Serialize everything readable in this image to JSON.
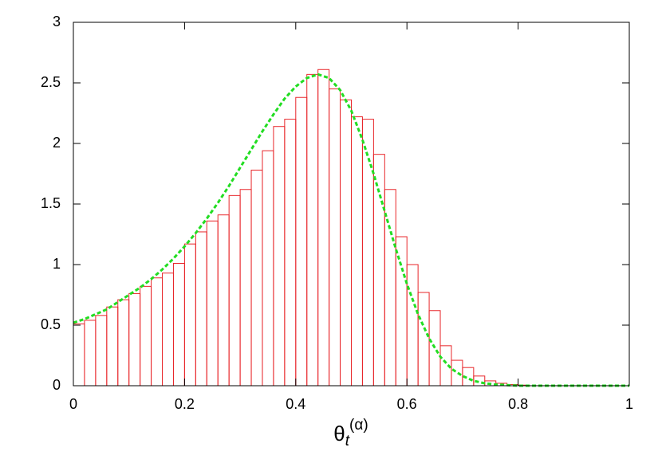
{
  "chart_data": {
    "type": "histogram",
    "bins": [
      0,
      0.02,
      0.04,
      0.06,
      0.08,
      0.1,
      0.12,
      0.14,
      0.16,
      0.18,
      0.2,
      0.22,
      0.24,
      0.26,
      0.28,
      0.3,
      0.32,
      0.34,
      0.36,
      0.38,
      0.4,
      0.42,
      0.44,
      0.46,
      0.48,
      0.5,
      0.52,
      0.54,
      0.56,
      0.58,
      0.6,
      0.62,
      0.64,
      0.66,
      0.68,
      0.7,
      0.72,
      0.74,
      0.76,
      0.78,
      0.8,
      0.82,
      0.84,
      0.86,
      0.88,
      0.9,
      0.92,
      0.94,
      0.96,
      0.98,
      1
    ],
    "counts": [
      0.51,
      0.54,
      0.58,
      0.65,
      0.71,
      0.76,
      0.82,
      0.89,
      0.93,
      1.01,
      1.17,
      1.27,
      1.36,
      1.41,
      1.57,
      1.62,
      1.78,
      1.94,
      2.14,
      2.2,
      2.38,
      2.57,
      2.61,
      2.45,
      2.36,
      2.22,
      2.2,
      1.91,
      1.62,
      1.23,
      1.0,
      0.77,
      0.62,
      0.33,
      0.21,
      0.15,
      0.08,
      0.04,
      0.02,
      0.01,
      0.005,
      0,
      0,
      0,
      0,
      0,
      0,
      0,
      0,
      0
    ],
    "color": "#e8262a",
    "curve": {
      "type": "line",
      "color": "#22dd22",
      "dashed": true,
      "x": [
        0,
        0.02,
        0.04,
        0.06,
        0.08,
        0.1,
        0.12,
        0.14,
        0.16,
        0.18,
        0.2,
        0.22,
        0.24,
        0.26,
        0.28,
        0.3,
        0.32,
        0.34,
        0.36,
        0.38,
        0.4,
        0.42,
        0.44,
        0.46,
        0.48,
        0.5,
        0.52,
        0.54,
        0.56,
        0.58,
        0.6,
        0.62,
        0.64,
        0.66,
        0.68,
        0.7,
        0.72,
        0.74,
        0.76,
        0.78,
        0.8,
        0.82,
        0.84,
        0.86,
        0.88,
        0.9,
        0.92,
        0.94,
        0.96,
        0.98,
        1
      ],
      "values": [
        0.52,
        0.55,
        0.59,
        0.63,
        0.69,
        0.75,
        0.81,
        0.88,
        0.96,
        1.05,
        1.15,
        1.26,
        1.38,
        1.51,
        1.65,
        1.8,
        1.95,
        2.1,
        2.24,
        2.37,
        2.47,
        2.54,
        2.57,
        2.54,
        2.44,
        2.27,
        2.03,
        1.75,
        1.44,
        1.13,
        0.84,
        0.59,
        0.39,
        0.24,
        0.14,
        0.08,
        0.04,
        0.02,
        0.01,
        0.005,
        0,
        0,
        0,
        0,
        0,
        0,
        0,
        0,
        0,
        0,
        0
      ]
    },
    "x_label": {
      "base": "θ",
      "sub": "t",
      "sup": "(α)"
    },
    "xlim": [
      0,
      1
    ],
    "xticks": [
      0,
      0.2,
      0.4,
      0.6,
      0.8,
      1
    ],
    "ylim": [
      0,
      3
    ],
    "yticks": [
      0,
      0.5,
      1,
      1.5,
      2,
      2.5,
      3
    ]
  }
}
